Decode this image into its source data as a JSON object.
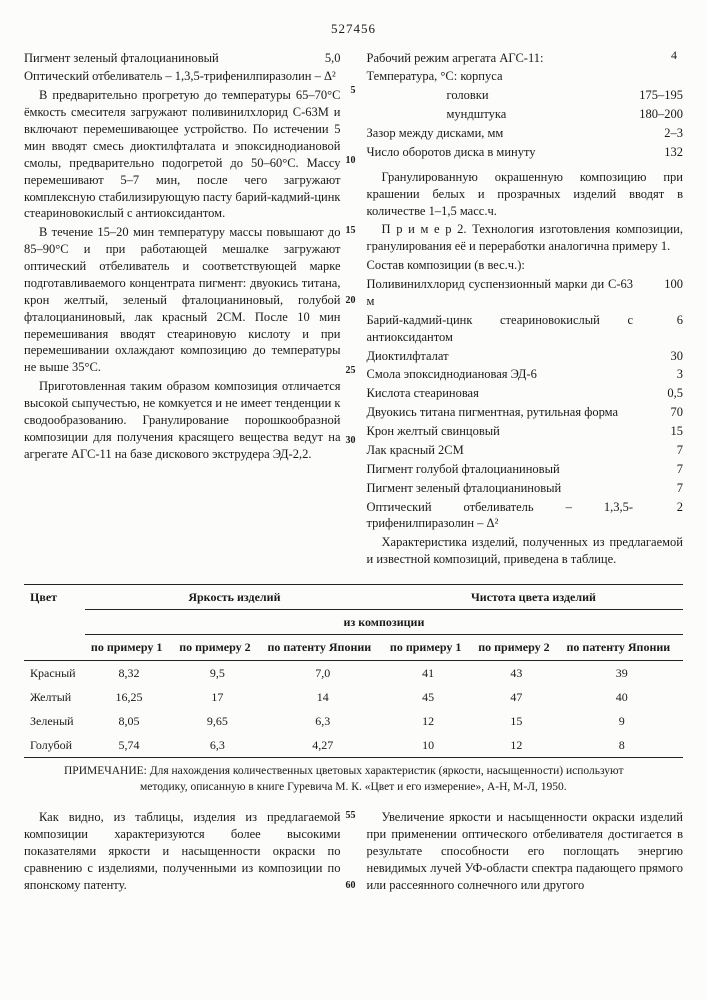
{
  "doc_number": "527456",
  "page_right": "4",
  "left_text": {
    "p1a": "Пигмент зеленый фталоцианиновый",
    "p1b": "5,0",
    "p2a": "Оптический отбеливатель – 1,3,5-трифенилпиразолин – Δ²",
    "p3": "В предварительно прогретую до температуры 65–70°С ёмкость смесителя загружают поливинилхлорид С-63М и включают перемешивающее устройство. По истечении 5 мин вводят смесь диоктилфталата и эпоксиднодиановой смолы, предварительно подогретой до 50–60°С. Массу перемешивают 5–7 мин, после чего загружают комплексную стабилизирующую пасту барий-кадмий-цинк стеариновокислый с антиоксидантом.",
    "p4": "В течение 15–20 мин температуру массы повышают до 85–90°С и при работающей мешалке загружают оптический отбеливатель и соответствующей марке подготавливаемого концентрата пигмент: двуокись титана, крон желтый, зеленый фталоцианиновый, голубой фталоцианиновый, лак красный 2СМ. После 10 мин перемешивания вводят стеариновую кислоту и при перемешивании охлаждают композицию до температуры не выше 35°С.",
    "p5": "Приготовленная таким образом композиция отличается высокой сыпучестью, не комкуется и не имеет тенденции к сводообразованию. Гранулирование порошкообразной композиции для получения красящего вещества ведут на агрегате АГС-11 на базе дискового экструдера ЭД-2,2."
  },
  "ln": {
    "l5": "5",
    "l10": "10",
    "l15": "15",
    "l20": "20",
    "l25": "25",
    "l30": "30",
    "l55": "55",
    "l60": "60"
  },
  "right_text": {
    "r1": "Рабочий режим агрегата АГС-11:",
    "r2": "Температура, °С: корпуса",
    "r3k": "головки",
    "r3v": "175–195",
    "r4k": "мундштука",
    "r4v": "180–200",
    "r5k": "Зазор между дисками, мм",
    "r5v": "2–3",
    "r6k": "Число оборотов диска в минуту",
    "r6v": "132",
    "r7": "Гранулированную окрашенную композицию при крашении белых и прозрачных изделий вводят в количестве 1–1,5 масс.ч.",
    "r8": "П р и м е р  2. Технология изготовления композиции, гранулирования её и переработки аналогична примеру 1.",
    "r9": "Состав композиции (в вес.ч.):",
    "c1k": "Поливинилхлорид суспензионный марки ди С-63 м",
    "c1v": "100",
    "c2k": "Барий-кадмий-цинк стеариновокислый с антиоксидантом",
    "c2v": "6",
    "c3k": "Диоктилфталат",
    "c3v": "30",
    "c4k": "Смола эпоксиднодиановая ЭД-6",
    "c4v": "3",
    "c5k": "Кислота стеариновая",
    "c5v": "0,5",
    "c6k": "Двуокись титана пигментная, рутильная форма",
    "c6v": "70",
    "c7k": "Крон желтый свинцовый",
    "c7v": "15",
    "c8k": "Лак красный 2СМ",
    "c8v": "7",
    "c9k": "Пигмент голубой фталоцианиновый",
    "c9v": "7",
    "c10k": "Пигмент зеленый фталоцианиновый",
    "c10v": "7",
    "c11k": "Оптический отбеливатель – 1,3,5-трифенилпиразолин – Δ²",
    "c11v": "2",
    "r10": "Характеристика изделий, полученных из предлагаемой и известной композиций, приведена в таблице."
  },
  "table": {
    "h_color": "Цвет",
    "h_bright": "Яркость изделий",
    "h_purity": "Чистота цвета изделий",
    "h_fromcomp": "из композиции",
    "h_ex1": "по примеру 1",
    "h_ex2": "по примеру 2",
    "h_japan": "по патенту Японии",
    "rows": [
      {
        "c": "Красный",
        "b1": "8,32",
        "b2": "9,5",
        "b3": "7,0",
        "p1": "41",
        "p2": "43",
        "p3": "39"
      },
      {
        "c": "Желтый",
        "b1": "16,25",
        "b2": "17",
        "b3": "14",
        "p1": "45",
        "p2": "47",
        "p3": "40"
      },
      {
        "c": "Зеленый",
        "b1": "8,05",
        "b2": "9,65",
        "b3": "6,3",
        "p1": "12",
        "p2": "15",
        "p3": "9"
      },
      {
        "c": "Голубой",
        "b1": "5,74",
        "b2": "6,3",
        "b3": "4,27",
        "p1": "10",
        "p2": "12",
        "p3": "8"
      }
    ]
  },
  "note_label": "ПРИМЕЧАНИЕ:",
  "note_text": "Для нахождения количественных цветовых характеристик (яркости, насыщенности) используют методику, описанную в книге Гуревича М. К. «Цвет и его измерение», А-Н, М-Л, 1950.",
  "lower_left": "Как видно, из таблицы, изделия из предлагаемой композиции характеризуются более высокими показателями яркости и насыщенности окраски по сравнению с изделиями, полученными из композиции по японскому патенту.",
  "lower_right": "Увеличение яркости и насыщенности окраски изделий при применении оптического отбеливателя достигается в результате способности его поглощать энергию невидимых лучей УФ-области спектра падающего прямого или рассеянного солнечного или другого"
}
